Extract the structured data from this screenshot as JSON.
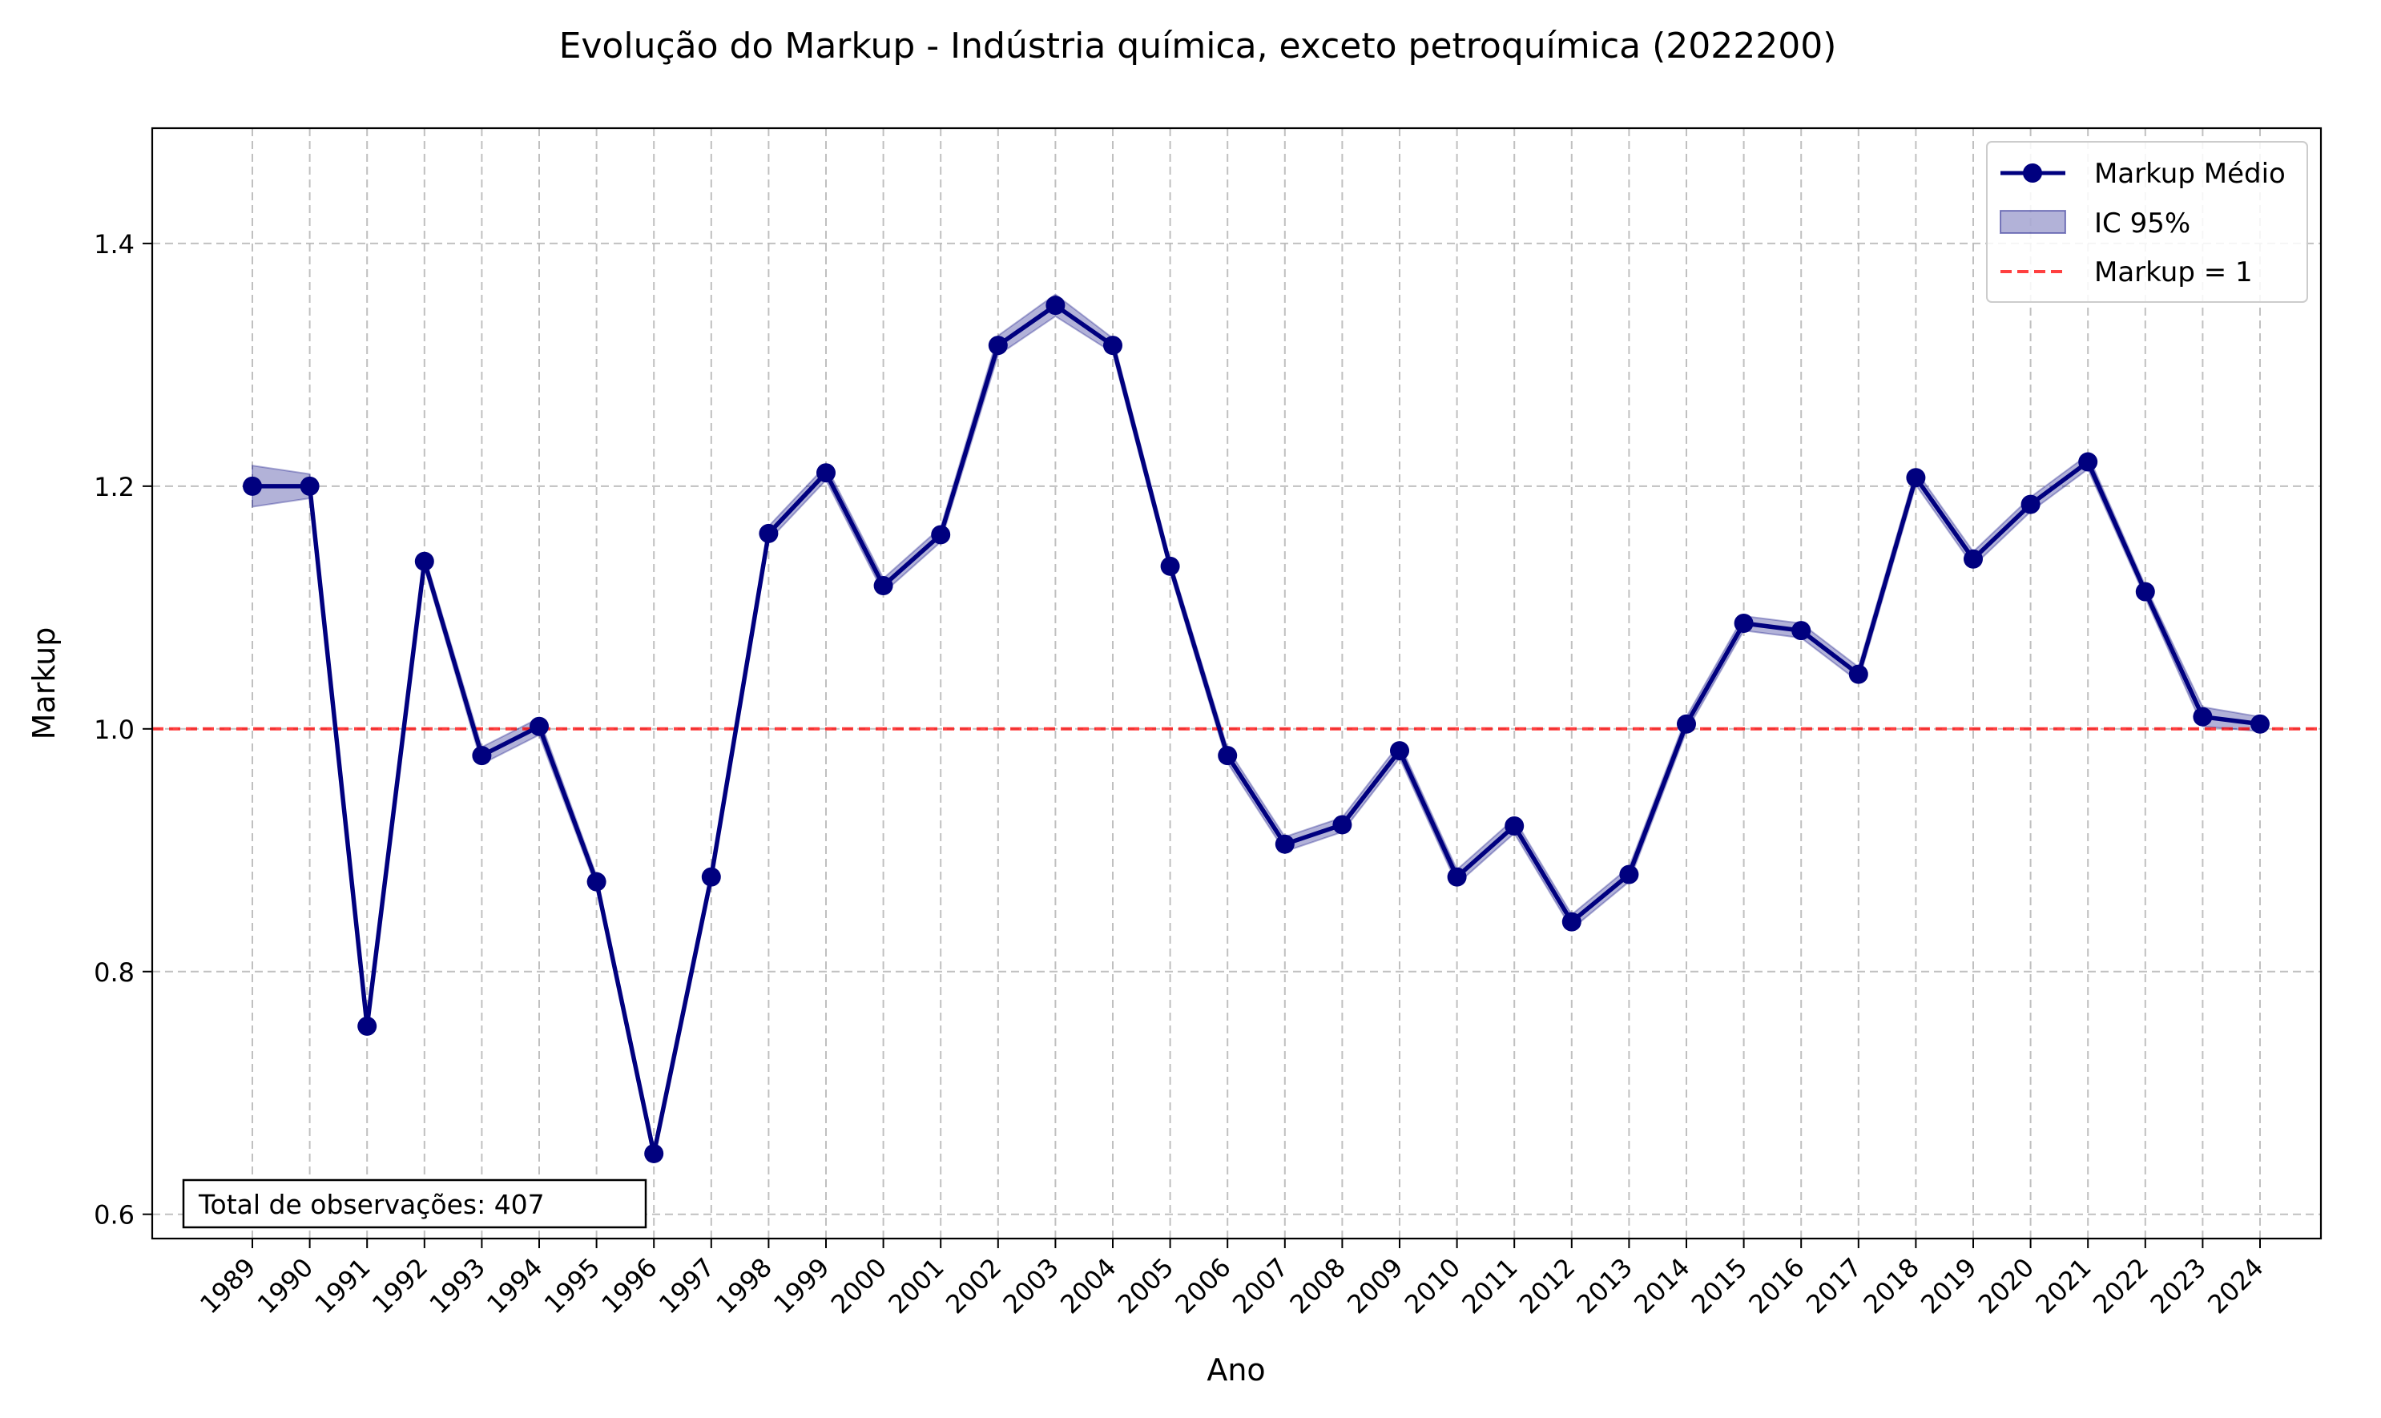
{
  "chart_data": {
    "type": "line",
    "title": "Evolução do Markup - Indústria química, exceto petroquímica (2022200)",
    "xlabel": "Ano",
    "ylabel": "Markup",
    "ylim": [
      0.58,
      1.495
    ],
    "yticks": [
      0.6,
      0.8,
      1.0,
      1.2,
      1.4
    ],
    "ytick_labels": [
      "0.6",
      "0.8",
      "1.0",
      "1.2",
      "1.4"
    ],
    "grid": true,
    "legend_position": "top-right",
    "categories": [
      "1989",
      "1990",
      "1991",
      "1992",
      "1993",
      "1994",
      "1995",
      "1996",
      "1997",
      "1998",
      "1999",
      "2000",
      "2001",
      "2002",
      "2003",
      "2004",
      "2005",
      "2006",
      "2007",
      "2008",
      "2009",
      "2010",
      "2011",
      "2012",
      "2013",
      "2014",
      "2015",
      "2016",
      "2017",
      "2018",
      "2019",
      "2020",
      "2021",
      "2022",
      "2023",
      "2024"
    ],
    "series": [
      {
        "name": "Markup Médio",
        "color": "#00007f",
        "values": [
          1.2,
          1.2,
          0.755,
          1.138,
          0.978,
          1.002,
          0.874,
          0.65,
          0.878,
          1.161,
          1.211,
          1.118,
          1.16,
          1.316,
          1.349,
          1.316,
          1.134,
          0.978,
          0.905,
          0.921,
          0.982,
          0.878,
          0.92,
          0.841,
          0.88,
          1.004,
          1.087,
          1.081,
          1.045,
          1.207,
          1.14,
          1.185,
          1.22,
          1.113,
          1.01,
          1.004
        ]
      }
    ],
    "ci": {
      "name": "IC 95%",
      "color": "#00007f",
      "lower": [
        1.183,
        1.19,
        0.75,
        1.133,
        0.971,
        0.995,
        0.869,
        0.645,
        0.873,
        1.155,
        1.205,
        1.112,
        1.154,
        1.308,
        1.34,
        1.31,
        1.129,
        0.972,
        0.899,
        0.915,
        0.976,
        0.872,
        0.914,
        0.835,
        0.874,
        0.998,
        1.081,
        1.075,
        1.039,
        1.201,
        1.134,
        1.179,
        1.214,
        1.108,
        1.002,
        0.998
      ],
      "upper": [
        1.217,
        1.21,
        0.76,
        1.143,
        0.985,
        1.009,
        0.879,
        0.655,
        0.883,
        1.167,
        1.217,
        1.124,
        1.166,
        1.324,
        1.358,
        1.322,
        1.139,
        0.984,
        0.911,
        0.927,
        0.988,
        0.884,
        0.926,
        0.847,
        0.886,
        1.01,
        1.093,
        1.087,
        1.051,
        1.213,
        1.146,
        1.191,
        1.226,
        1.118,
        1.018,
        1.01
      ]
    },
    "reference_line": {
      "name": "Markup = 1",
      "value": 1.0,
      "color": "#ff0000"
    },
    "annotation": "Total de observações: 407"
  }
}
